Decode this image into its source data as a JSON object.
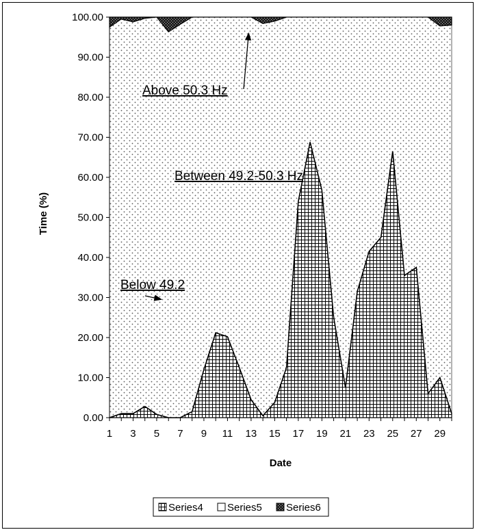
{
  "chart_data": {
    "type": "area",
    "stacked": true,
    "xlabel": "Date",
    "ylabel": "Time (%)",
    "ylim": [
      0,
      100
    ],
    "xlim": [
      1,
      30
    ],
    "x": [
      1,
      2,
      3,
      4,
      5,
      6,
      7,
      8,
      9,
      10,
      11,
      12,
      13,
      14,
      15,
      16,
      17,
      18,
      19,
      20,
      21,
      22,
      23,
      24,
      25,
      26,
      27,
      28,
      29,
      30
    ],
    "x_tick_labels": [
      "1",
      "3",
      "5",
      "7",
      "9",
      "11",
      "13",
      "15",
      "17",
      "19",
      "21",
      "23",
      "25",
      "27",
      "29"
    ],
    "y_tick_labels": [
      "0.00",
      "10.00",
      "20.00",
      "30.00",
      "40.00",
      "50.00",
      "60.00",
      "70.00",
      "80.00",
      "90.00",
      "100.00"
    ],
    "grid": false,
    "legend_position": "bottom",
    "series": [
      {
        "name": "Series4",
        "pattern": "grid",
        "values": [
          0.0,
          1.0,
          1.0,
          2.8,
          0.8,
          0.0,
          0.0,
          1.5,
          12.0,
          21.2,
          20.2,
          12.5,
          4.5,
          0.5,
          3.8,
          12.5,
          54.0,
          68.8,
          56.8,
          25.0,
          7.5,
          31.5,
          41.5,
          45.0,
          66.5,
          35.5,
          37.5,
          6.0,
          10.0,
          1.0
        ]
      },
      {
        "name": "Series5",
        "pattern": "dots",
        "values": [
          97.5,
          98.5,
          97.8,
          96.9,
          99.2,
          96.3,
          98.2,
          98.5,
          88.0,
          78.8,
          79.8,
          87.5,
          95.5,
          97.9,
          95.2,
          87.5,
          46.0,
          31.2,
          43.2,
          75.0,
          92.5,
          68.5,
          58.5,
          55.0,
          33.5,
          64.5,
          62.5,
          94.0,
          87.8,
          97.0
        ]
      },
      {
        "name": "Series6",
        "pattern": "dark",
        "values": [
          2.5,
          0.5,
          1.2,
          0.3,
          0.0,
          3.7,
          1.8,
          0.0,
          0.0,
          0.0,
          0.0,
          0.0,
          0.0,
          1.6,
          1.0,
          0.0,
          0.0,
          0.0,
          0.0,
          0.0,
          0.0,
          0.0,
          0.0,
          0.0,
          0.0,
          0.0,
          0.0,
          0.0,
          2.2,
          2.0
        ]
      }
    ],
    "annotations": [
      {
        "text": "Above 50.3 Hz",
        "arrow_to": [
          12.8,
          96
        ]
      },
      {
        "text": "Between 49.2-50.3 Hz"
      },
      {
        "text": "Below 49.2",
        "arrow_to": [
          5.4,
          29.5
        ]
      }
    ]
  }
}
